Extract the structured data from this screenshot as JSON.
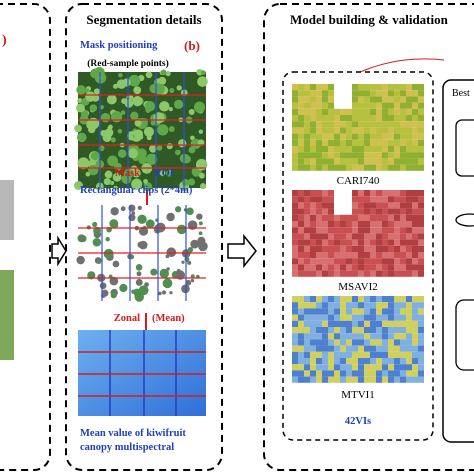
{
  "panel_a": {
    "label": ")"
  },
  "panel_b": {
    "title": "Segmentation details",
    "label": "(b)",
    "step1": "Mask positioning",
    "step1_note": "(Red-sample points)",
    "step2_mask": "Mask",
    "step2_roi": "ROI",
    "step2_clips": "Rectangular clips (2*4m)",
    "step3_zonal": "Zonal",
    "step3_mean": "(Mean)",
    "result": [
      "Mean value of  kiwifruit",
      "canopy multispectral"
    ]
  },
  "panel_c": {
    "title": "Model building  & validation",
    "maps": [
      "CARI740",
      "MSAVI2",
      "MTVI1"
    ],
    "more": "42VIs",
    "best": "Best"
  }
}
